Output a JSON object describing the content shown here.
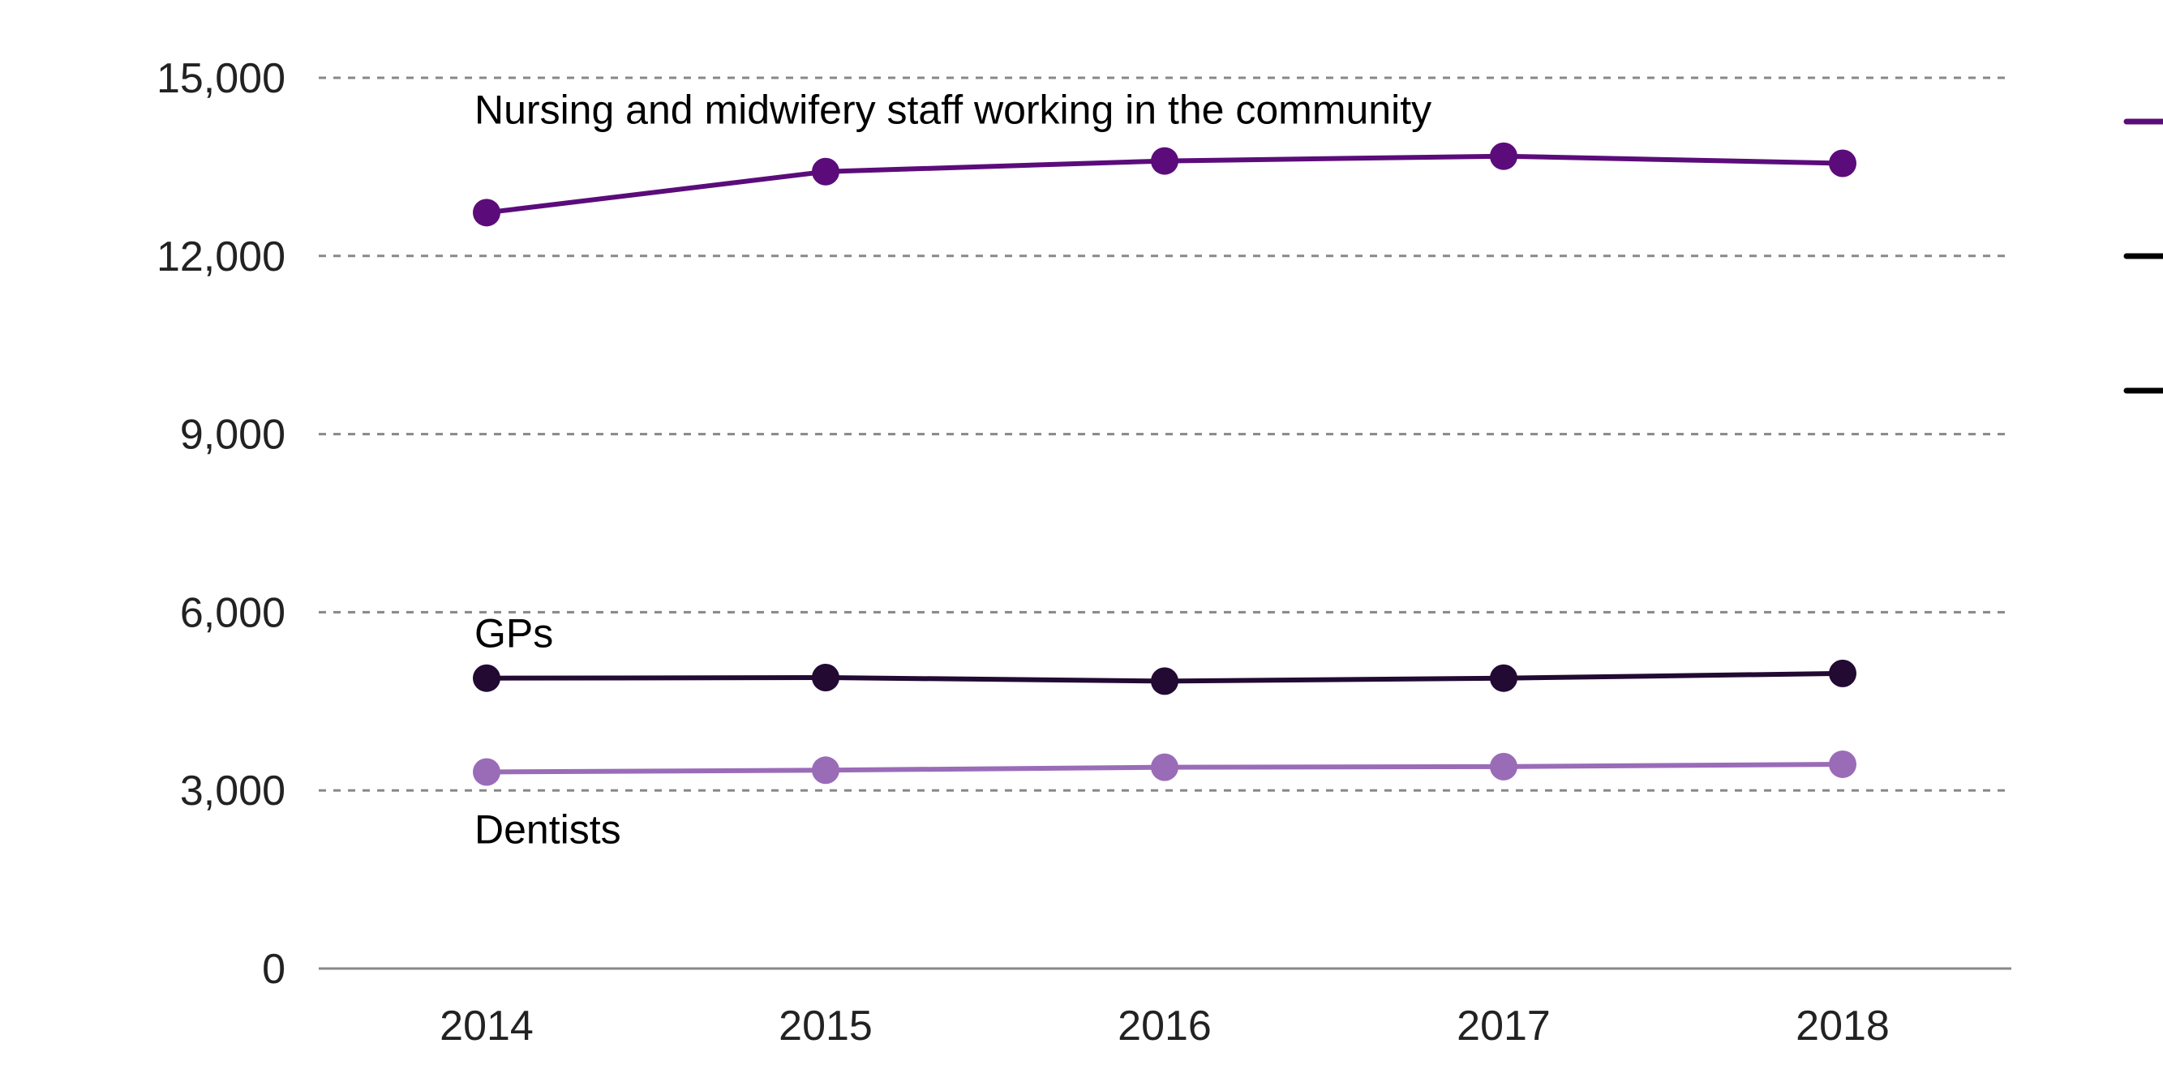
{
  "chart_data": {
    "type": "line",
    "title": "",
    "xlabel": "",
    "ylabel": "",
    "categories": [
      "2014",
      "2015",
      "2016",
      "2017",
      "2018"
    ],
    "ylim": [
      0,
      15000
    ],
    "y_ticks": [
      0,
      3000,
      6000,
      9000,
      12000,
      15000
    ],
    "y_tick_labels": [
      "0",
      "3,000",
      "6,000",
      "9,000",
      "12,000",
      "15,000"
    ],
    "grid": true,
    "legend": "right, markers only, cropped",
    "series": [
      {
        "name": "Nursing and midwifery staff working in the community",
        "color": "#5b0c7a",
        "values": [
          12730,
          13420,
          13600,
          13680,
          13560
        ]
      },
      {
        "name": "GPs",
        "color": "#220a33",
        "values": [
          4890,
          4900,
          4840,
          4890,
          4970
        ]
      },
      {
        "name": "Dentists",
        "color": "#9a6cb8",
        "values": [
          3310,
          3340,
          3390,
          3400,
          3440
        ]
      }
    ]
  }
}
